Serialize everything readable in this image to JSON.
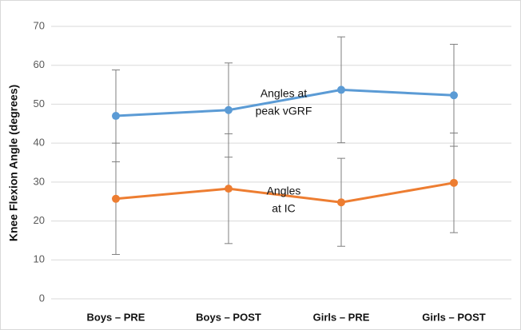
{
  "chart_data": {
    "type": "line",
    "y_label": "Knee Flexion Angle (degrees)",
    "categories": [
      "Boys – PRE",
      "Boys – POST",
      "Girls – PRE",
      "Girls – POST"
    ],
    "series": [
      {
        "color": "#5b9bd5",
        "values": [
          47,
          48.5,
          53.7,
          52.3
        ],
        "errors": [
          11.8,
          12.1,
          13.6,
          13.1
        ]
      },
      {
        "color": "#ed7d31",
        "values": [
          25.7,
          28.3,
          24.8,
          29.8
        ],
        "errors": [
          14.3,
          14.1,
          11.3,
          12.8
        ]
      }
    ],
    "annotations": [
      {
        "lines": [
          "Angles at",
          "peak vGRF"
        ]
      },
      {
        "lines": [
          "Angles",
          "at IC"
        ]
      }
    ],
    "ylim": [
      0,
      70
    ],
    "yticks": [
      0,
      10,
      20,
      30,
      40,
      50,
      60,
      70
    ],
    "grid": true
  }
}
